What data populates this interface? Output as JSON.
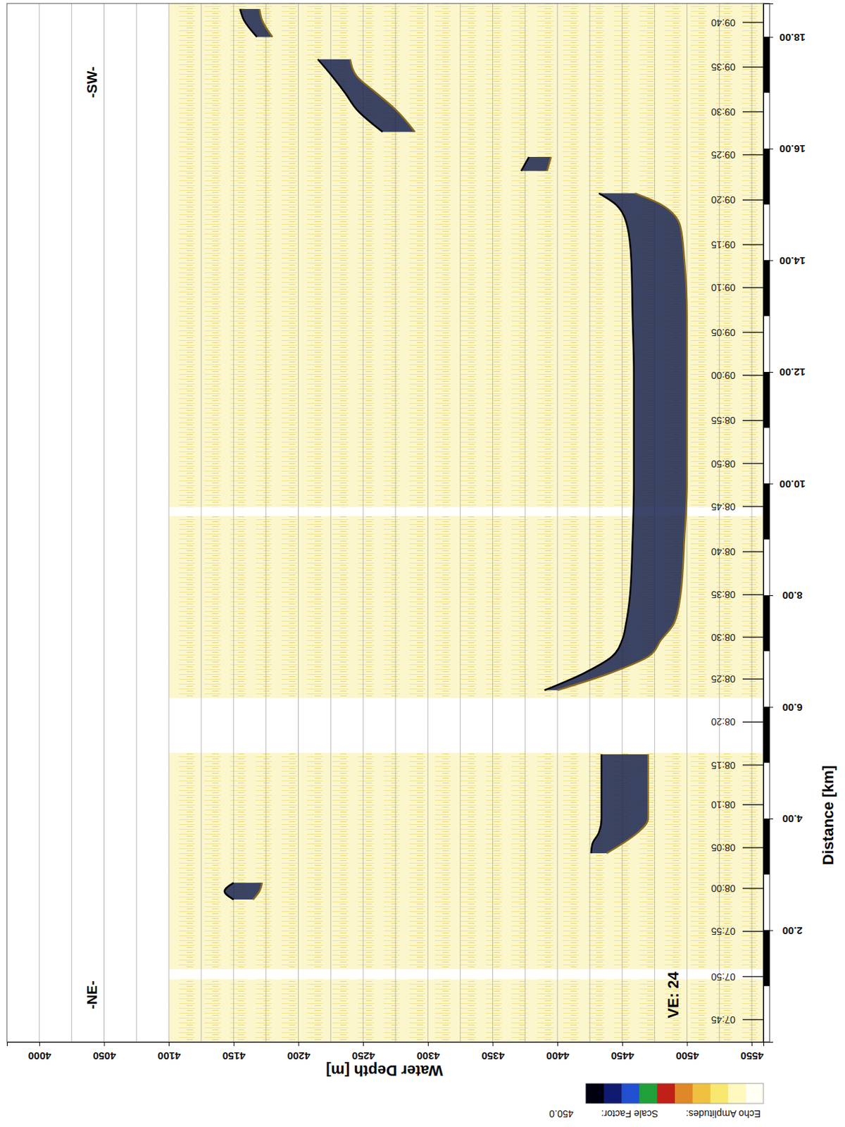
{
  "chart_data": {
    "type": "area",
    "xlabel": "Distance [km]",
    "ylabel": "Water Depth [m]",
    "xlim": [
      0,
      18.6
    ],
    "xticks": [
      {
        "value": 2,
        "label": "2.00"
      },
      {
        "value": 4,
        "label": "4.00"
      },
      {
        "value": 6,
        "label": "6.00"
      },
      {
        "value": 8,
        "label": "8.00"
      },
      {
        "value": 10,
        "label": "10.00"
      },
      {
        "value": 12,
        "label": "12.00"
      },
      {
        "value": 14,
        "label": "14.00"
      },
      {
        "value": 16,
        "label": "16.00"
      },
      {
        "value": 18,
        "label": "18.00"
      }
    ],
    "ylim": [
      3975,
      4559
    ],
    "yticks": [
      4000,
      4050,
      4100,
      4150,
      4200,
      4250,
      4300,
      4350,
      4400,
      4450,
      4500,
      4550
    ],
    "grid": true,
    "color": "#1a2450",
    "x": [
      2.55,
      2.7,
      2.85,
      3.0,
      3.38,
      3.55,
      3.75,
      4.0,
      4.5,
      5.15,
      5.6,
      6.3,
      6.6,
      6.9,
      7.2,
      7.5,
      8.0,
      9.0,
      10.0,
      11.0,
      12.0,
      13.0,
      14.0,
      14.6,
      15.0,
      15.2,
      15.4,
      15.6,
      15.85,
      16.0,
      16.3,
      16.7,
      17.0,
      17.3,
      17.6,
      17.8,
      18.0,
      18.3,
      18.5
    ],
    "series": [
      {
        "color": "#000000",
        "values": [
          4150,
          4143,
          4150,
          null,
          4426,
          4427,
          4432,
          4434,
          4434,
          4434,
          null,
          4390,
          4420,
          4442,
          4450,
          4453,
          4456,
          4458,
          4459,
          4459,
          4459,
          4458,
          4457,
          4454,
          4445,
          4432,
          null,
          4372,
          4378,
          null,
          4265,
          4245,
          4236,
          4226,
          4215,
          null,
          4168,
          4158,
          4155
        ]
      },
      {
        "color": "#8a6a20",
        "values": [
          4165,
          4170,
          4172,
          null,
          4438,
          4450,
          4462,
          4470,
          4470,
          4470,
          null,
          4400,
          4440,
          4470,
          4480,
          4490,
          4495,
          4498,
          4500,
          4500,
          4500,
          4500,
          4498,
          4495,
          4480,
          4460,
          null,
          4392,
          4395,
          null,
          4290,
          4275,
          4260,
          4245,
          4240,
          null,
          4180,
          4172,
          4170
        ]
      }
    ],
    "record_depth": [
      4100,
      4559
    ],
    "record_segments": [
      [
        0,
        1.12
      ],
      [
        1.3,
        5.18
      ],
      [
        6.16,
        9.42
      ],
      [
        9.58,
        18.6
      ]
    ],
    "time_labels": [
      "07:45",
      "07:50",
      "07:55",
      "08:00",
      "08:05",
      "08:10",
      "08:15",
      "08:20",
      "08:25",
      "08:30",
      "08:35",
      "08:40",
      "08:45",
      "08:50",
      "08:55",
      "09:00",
      "09:05",
      "09:10",
      "09:15",
      "09:20",
      "09:25",
      "09:30",
      "09:35",
      "09:40"
    ],
    "time_positions": [
      0.4,
      1.17,
      1.98,
      2.75,
      3.48,
      4.25,
      4.96,
      5.73,
      6.5,
      7.25,
      8.01,
      8.78,
      9.59,
      10.36,
      11.13,
      11.94,
      12.71,
      13.51,
      14.28,
      15.08,
      15.89,
      16.66,
      17.46,
      18.26
    ],
    "direction_labels": [
      "-NE-",
      "-SW-"
    ],
    "annotation": "VE: 24",
    "colorbar": {
      "label": "Echo Amplitudes:",
      "scale_label": "Scale Factor:",
      "scale_factor": {
        "value": 450,
        "label": "450.0"
      },
      "colors": [
        "#fffff4",
        "#fff9c0",
        "#f8e870",
        "#f0c040",
        "#e08828",
        "#c02018",
        "#20a038",
        "#2050d0",
        "#101a70",
        "#000010"
      ]
    }
  }
}
